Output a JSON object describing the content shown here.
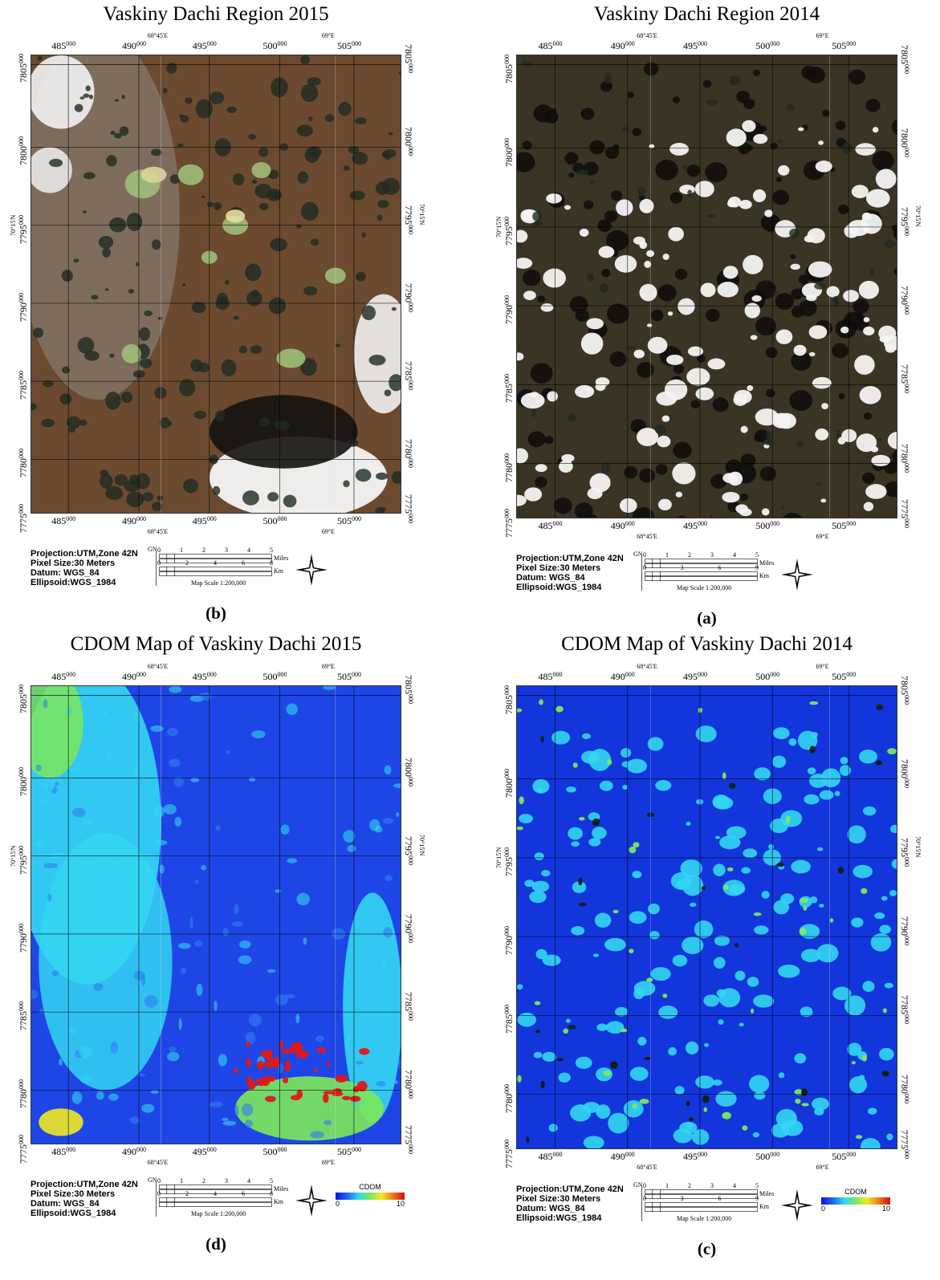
{
  "panels": [
    {
      "title": "Vaskiny Dachi Region 2015",
      "label": "(b)",
      "type": "rgb2015",
      "x_ticks_top": [
        "485000",
        "490000",
        "495000",
        "500000",
        "505000"
      ],
      "x_ticks_bottom": [
        "485000",
        "490000",
        "495000",
        "500000",
        "505000"
      ],
      "y_ticks": [
        "7805000",
        "7800000",
        "7795000",
        "7790000",
        "7785000",
        "7780000",
        "7775000"
      ],
      "lon_labels": [
        "68°45'E",
        "69°E"
      ],
      "lat_label": "70°15'N",
      "meta": [
        "Projection:UTM,Zone 42N",
        "Pixel Size:30 Meters",
        "Datum: WGS_84",
        "Ellipsoid:WGS_1984"
      ],
      "grid_north": "GN",
      "miles_ticks": [
        "0",
        "1",
        "2",
        "3",
        "4",
        "5"
      ],
      "miles_unit": "Miles",
      "km_ticks": [
        "0",
        "2",
        "4",
        "6",
        "8"
      ],
      "km_unit": "Km",
      "scale_text": "Map Scale 1:200,000"
    },
    {
      "title": "Vaskiny Dachi Region 2014",
      "label": "(a)",
      "type": "rgb2014",
      "x_ticks_top": [
        "485000",
        "490000",
        "495000",
        "500000",
        "505000"
      ],
      "x_ticks_bottom": [
        "485000",
        "490000",
        "495000",
        "500000",
        "505000"
      ],
      "y_ticks": [
        "7805000",
        "7800000",
        "7795000",
        "7790000",
        "7785000",
        "7780000",
        "7775000"
      ],
      "lon_labels": [
        "68°45'E",
        "69°E"
      ],
      "lat_label": "70°15'N",
      "meta": [
        "Projection:UTM,Zone 42N",
        "Pixel Size:30 Meters",
        "Datum: WGS_84",
        "Ellipsoid:WGS_1984"
      ],
      "grid_north": "GN",
      "miles_ticks": [
        "0",
        "1",
        "2",
        "3",
        "4",
        "5"
      ],
      "miles_unit": "Miles",
      "km_ticks": [
        "0",
        "3",
        "6",
        "9"
      ],
      "km_unit": "Km",
      "scale_text": "Map Scale 1:200,000"
    },
    {
      "title": "CDOM Map of Vaskiny Dachi 2015",
      "label": "(d)",
      "type": "cdom2015",
      "x_ticks_top": [
        "485000",
        "490000",
        "495000",
        "500000",
        "505000"
      ],
      "x_ticks_bottom": [
        "485000",
        "490000",
        "495000",
        "500000",
        "505000"
      ],
      "y_ticks": [
        "7805000",
        "7800000",
        "7795000",
        "7790000",
        "7785000",
        "7780000",
        "7775000"
      ],
      "lon_labels": [
        "68°45'E",
        "69°E"
      ],
      "lat_label": "70°15'N",
      "meta": [
        "Projection:UTM,Zone 42N",
        "Pixel Size:30 Meters",
        "Datum: WGS_84",
        "Ellipsoid:WGS_1984"
      ],
      "grid_north": "GN",
      "miles_ticks": [
        "0",
        "1",
        "2",
        "3",
        "4",
        "5"
      ],
      "miles_unit": "Miles",
      "km_ticks": [
        "0",
        "2",
        "4",
        "6",
        "8"
      ],
      "km_unit": "Km",
      "scale_text": "Map Scale 1:200,000",
      "legend": {
        "title": "CDOM",
        "min": "0",
        "max": "10"
      }
    },
    {
      "title": "CDOM Map of Vaskiny Dachi 2014",
      "label": "(c)",
      "type": "cdom2014",
      "x_ticks_top": [
        "485000",
        "490000",
        "495000",
        "500000",
        "505000"
      ],
      "x_ticks_bottom": [
        "485000",
        "490000",
        "495000",
        "500000",
        "505000"
      ],
      "y_ticks": [
        "7805000",
        "7800000",
        "7795000",
        "7790000",
        "7785000",
        "7780000",
        "7775000"
      ],
      "lon_labels": [
        "68°45'E",
        "69°E"
      ],
      "lat_label": "70°15'N",
      "meta": [
        "Projection:UTM,Zone 42N",
        "Pixel Size:30 Meters",
        "Datum: WGS_84",
        "Ellipsoid:WGS_1984"
      ],
      "grid_north": "GN",
      "miles_ticks": [
        "0",
        "1",
        "2",
        "3",
        "4",
        "5"
      ],
      "miles_unit": "Miles",
      "km_ticks": [
        "0",
        "3",
        "6",
        "9"
      ],
      "km_unit": "Km",
      "scale_text": "Map Scale 1:200,000",
      "legend": {
        "title": "CDOM",
        "min": "0",
        "max": "10"
      }
    }
  ],
  "colors": {
    "rgb2015_base": "#6b4a30",
    "rgb2014_base": "#3a3424",
    "cdom_blue": "#1e46e6",
    "cdom_cyan": "#33d6f2",
    "cdom_green": "#7de85a",
    "cdom_red": "#e01818"
  }
}
